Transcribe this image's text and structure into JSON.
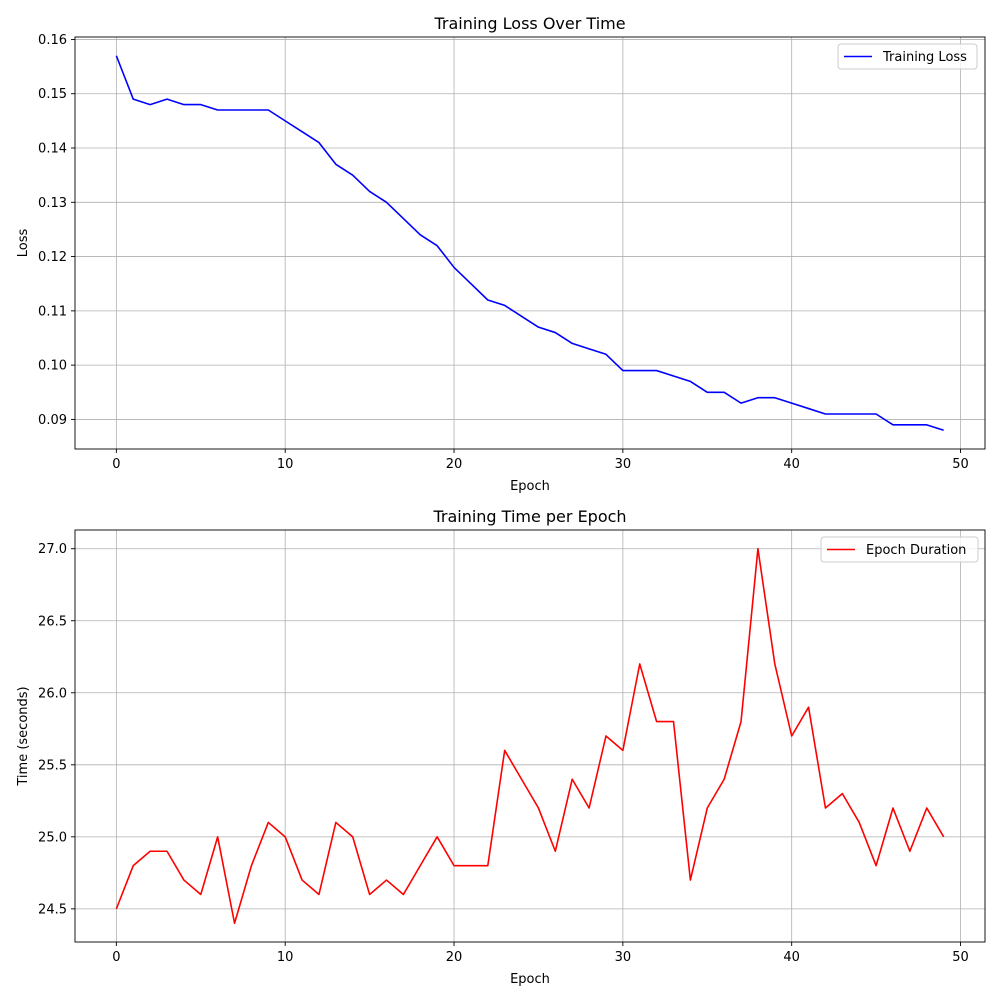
{
  "chart_data": [
    {
      "type": "line",
      "title": "Training Loss Over Time",
      "xlabel": "Epoch",
      "ylabel": "Loss",
      "xlim": [
        -2.45,
        51.45
      ],
      "ylim": [
        0.08455,
        0.16045
      ],
      "xticks": [
        0,
        10,
        20,
        30,
        40,
        50
      ],
      "yticks": [
        0.09,
        0.1,
        0.11,
        0.12,
        0.13,
        0.14,
        0.15,
        0.16
      ],
      "ytick_labels": [
        "0.09",
        "0.10",
        "0.11",
        "0.12",
        "0.13",
        "0.14",
        "0.15",
        "0.16"
      ],
      "grid": true,
      "legend_position": "top-right",
      "series": [
        {
          "name": "Training Loss",
          "color": "#0000ff",
          "x": [
            0,
            1,
            2,
            3,
            4,
            5,
            6,
            7,
            8,
            9,
            10,
            11,
            12,
            13,
            14,
            15,
            16,
            17,
            18,
            19,
            20,
            21,
            22,
            23,
            24,
            25,
            26,
            27,
            28,
            29,
            30,
            31,
            32,
            33,
            34,
            35,
            36,
            37,
            38,
            39,
            40,
            41,
            42,
            43,
            44,
            45,
            46,
            47,
            48,
            49
          ],
          "values": [
            0.157,
            0.149,
            0.148,
            0.149,
            0.148,
            0.148,
            0.147,
            0.147,
            0.147,
            0.147,
            0.145,
            0.143,
            0.141,
            0.137,
            0.135,
            0.132,
            0.13,
            0.127,
            0.124,
            0.122,
            0.118,
            0.115,
            0.112,
            0.111,
            0.109,
            0.107,
            0.106,
            0.104,
            0.103,
            0.102,
            0.099,
            0.099,
            0.099,
            0.098,
            0.097,
            0.095,
            0.095,
            0.093,
            0.094,
            0.094,
            0.093,
            0.092,
            0.091,
            0.091,
            0.091,
            0.091,
            0.089,
            0.089,
            0.089,
            0.088
          ]
        }
      ]
    },
    {
      "type": "line",
      "title": "Training Time per Epoch",
      "xlabel": "Epoch",
      "ylabel": "Time (seconds)",
      "xlim": [
        -2.45,
        51.45
      ],
      "ylim": [
        24.27,
        27.13
      ],
      "xticks": [
        0,
        10,
        20,
        30,
        40,
        50
      ],
      "yticks": [
        24.5,
        25.0,
        25.5,
        26.0,
        26.5,
        27.0
      ],
      "ytick_labels": [
        "24.5",
        "25.0",
        "25.5",
        "26.0",
        "26.5",
        "27.0"
      ],
      "grid": true,
      "legend_position": "top-right",
      "series": [
        {
          "name": "Epoch Duration",
          "color": "#ff0000",
          "x": [
            0,
            1,
            2,
            3,
            4,
            5,
            6,
            7,
            8,
            9,
            10,
            11,
            12,
            13,
            14,
            15,
            16,
            17,
            18,
            19,
            20,
            21,
            22,
            23,
            24,
            25,
            26,
            27,
            28,
            29,
            30,
            31,
            32,
            33,
            34,
            35,
            36,
            37,
            38,
            39,
            40,
            41,
            42,
            43,
            44,
            45,
            46,
            47,
            48,
            49
          ],
          "values": [
            24.5,
            24.8,
            24.9,
            24.9,
            24.7,
            24.6,
            25.0,
            24.4,
            24.8,
            25.1,
            25.0,
            24.7,
            24.6,
            25.1,
            25.0,
            24.6,
            24.7,
            24.6,
            24.8,
            25.0,
            24.8,
            24.8,
            24.8,
            25.6,
            25.4,
            25.2,
            24.9,
            25.4,
            25.2,
            25.7,
            25.6,
            26.2,
            25.8,
            25.8,
            24.7,
            25.2,
            25.4,
            25.8,
            27.0,
            26.2,
            25.7,
            25.9,
            25.2,
            25.3,
            25.1,
            24.8,
            25.2,
            24.9,
            25.2,
            25.0
          ]
        }
      ]
    }
  ]
}
